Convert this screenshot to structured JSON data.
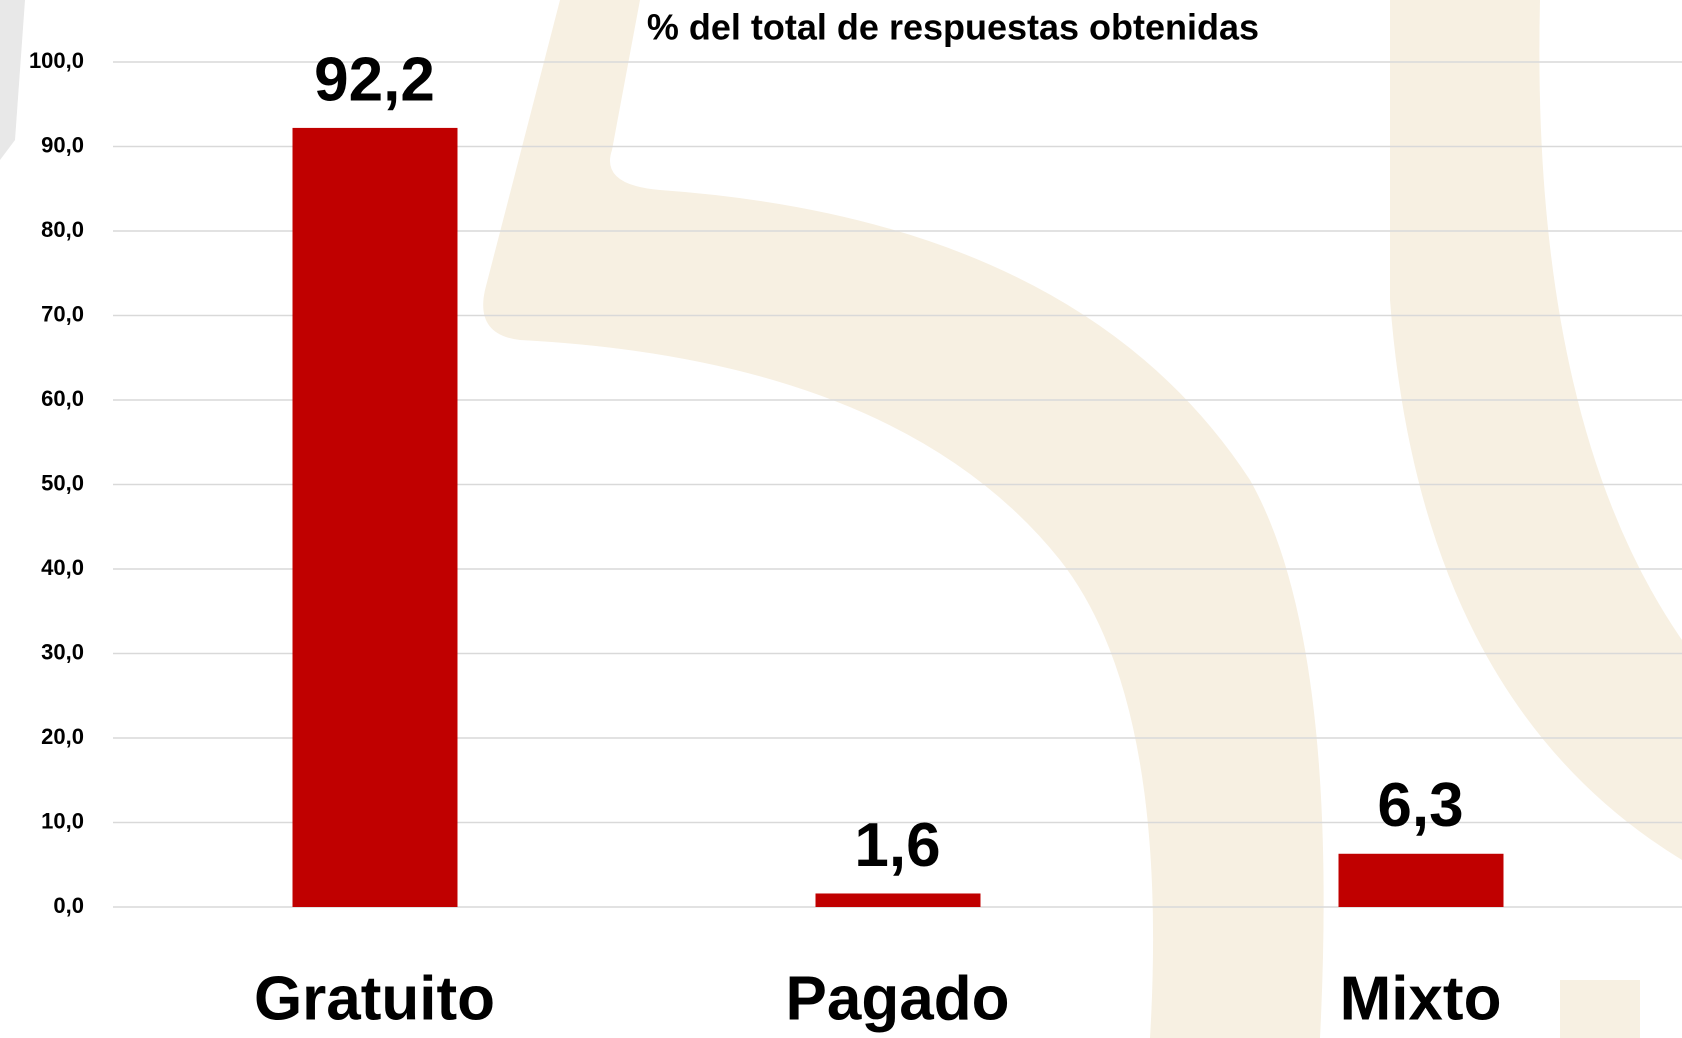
{
  "chart_data": {
    "type": "bar",
    "title": "% del total de respuestas obtenidas",
    "categories": [
      "Gratuito",
      "Pagado",
      "Mixto"
    ],
    "values": [
      92.2,
      1.6,
      6.3
    ],
    "value_labels": [
      "92,2",
      "1,6",
      "6,3"
    ],
    "color": "#c00000",
    "ylim": [
      0,
      100
    ],
    "yticks": [
      {
        "value": 0,
        "label": "0,0"
      },
      {
        "value": 10,
        "label": "10,0"
      },
      {
        "value": 20,
        "label": "20,0"
      },
      {
        "value": 30,
        "label": "30,0"
      },
      {
        "value": 40,
        "label": "40,0"
      },
      {
        "value": 50,
        "label": "50,0"
      },
      {
        "value": 60,
        "label": "60,0"
      },
      {
        "value": 70,
        "label": "70,0"
      },
      {
        "value": 80,
        "label": "80,0"
      },
      {
        "value": 90,
        "label": "90,0"
      },
      {
        "value": 100,
        "label": "100,0"
      }
    ],
    "grid": true
  }
}
